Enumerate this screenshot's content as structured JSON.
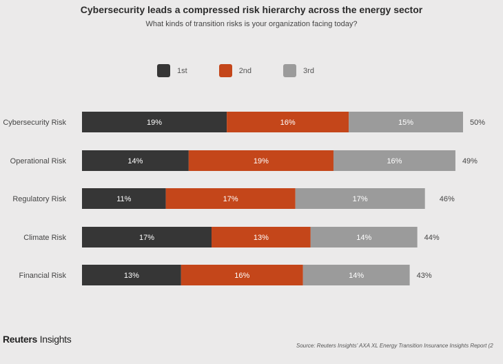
{
  "chart_data": {
    "type": "bar",
    "orientation": "horizontal",
    "stacked": true,
    "title": "Cybersecurity leads a compressed risk hierarchy across the energy sector",
    "subtitle": "What kinds of transition risks is your organization facing today?",
    "categories": [
      "Cybersecurity Risk",
      "Operational Risk",
      "Regulatory Risk",
      "Climate Risk",
      "Financial Risk"
    ],
    "series": [
      {
        "name": "1st",
        "color": "#363636",
        "values": [
          19,
          14,
          11,
          17,
          13
        ]
      },
      {
        "name": "2nd",
        "color": "#c4461a",
        "values": [
          16,
          19,
          17,
          13,
          16
        ]
      },
      {
        "name": "3rd",
        "color": "#9b9b9b",
        "values": [
          15,
          16,
          17,
          14,
          14
        ]
      }
    ],
    "totals": [
      50,
      49,
      46,
      44,
      43
    ],
    "unit": "%",
    "legend_position": "top",
    "grid": false
  },
  "footer": {
    "logo_bold": "Reuters",
    "logo_light": "Insights",
    "source": "Source: Reuters Insights' AXA XL Energy Transition Insurance Insights Report (2"
  }
}
